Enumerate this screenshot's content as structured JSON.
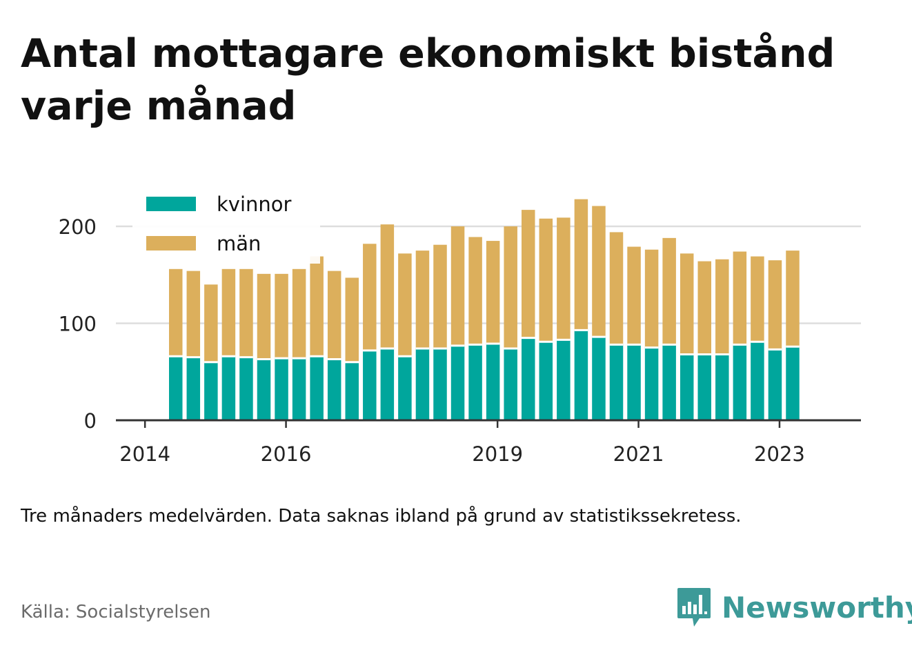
{
  "title": "Antal mottagare ekonomiskt bistånd varje månad",
  "note": "Tre månaders medelvärden. Data saknas ibland på grund av statistikssekretess.",
  "source": "Källa: Socialstyrelsen",
  "brand": {
    "name": "Newsworthy",
    "icon": "newsworthy-logo-icon",
    "color": "#3d9a98"
  },
  "chart_data": {
    "type": "bar",
    "stacked": true,
    "series": [
      {
        "name": "kvinnor",
        "color": "#00a69c",
        "values": [
          66,
          65,
          60,
          66,
          65,
          63,
          64,
          64,
          66,
          63,
          60,
          72,
          74,
          66,
          74,
          74,
          77,
          78,
          79,
          74,
          85,
          81,
          83,
          93,
          86,
          78,
          78,
          75,
          78,
          68,
          68,
          68,
          78,
          81,
          73,
          76
        ]
      },
      {
        "name": "män",
        "color": "#dcaf5c",
        "values": [
          90,
          89,
          80,
          90,
          91,
          88,
          87,
          92,
          103,
          91,
          87,
          110,
          128,
          106,
          101,
          107,
          123,
          111,
          106,
          126,
          132,
          127,
          126,
          135,
          135,
          116,
          101,
          101,
          110,
          104,
          96,
          98,
          96,
          88,
          92,
          99
        ]
      }
    ],
    "totals": [
      156,
      154,
      140,
      156,
      156,
      151,
      151,
      156,
      169,
      154,
      147,
      182,
      202,
      172,
      175,
      181,
      200,
      189,
      185,
      200,
      217,
      208,
      209,
      228,
      221,
      194,
      179,
      176,
      188,
      172,
      164,
      166,
      174,
      169,
      165,
      175
    ],
    "x_start": "2014-06",
    "x_step_months": 3,
    "x_ticks": [
      "2014",
      "2016",
      "2019",
      "2021",
      "2023"
    ],
    "y_ticks": [
      0,
      100,
      200
    ],
    "ylim": [
      0,
      230
    ],
    "grid": true,
    "legend_position": "top-left",
    "xlabel": "",
    "ylabel": ""
  }
}
